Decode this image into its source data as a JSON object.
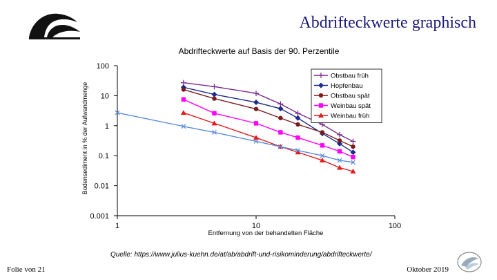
{
  "slide": {
    "title": "Abdrifteckwerte graphisch",
    "source": "Quelle: https://www.julius-kuehn.de/at/ab/abdrift-und-risikominderung/abdrifteckwerte/",
    "footer_left": "Folie von 21",
    "footer_right": "Oktober 2019"
  },
  "colors": {
    "title": "#1b1a7a",
    "logo": "#111111"
  },
  "chart_data": {
    "type": "line",
    "title": "Abdrifteckwerte auf Basis der 90. Perzentile",
    "xlabel": "Entfernung von der behandelten Fläche",
    "ylabel": "Bodensediment in % der Aufwandmenge",
    "x_scale": "log",
    "y_scale": "log",
    "xlim": [
      1,
      100
    ],
    "ylim": [
      0.001,
      100
    ],
    "x_ticks": [
      {
        "value": 1,
        "label": "1"
      },
      {
        "value": 10,
        "label": "10"
      },
      {
        "value": 100,
        "label": "100"
      }
    ],
    "y_ticks": [
      {
        "value": 100,
        "label": "100"
      },
      {
        "value": 10,
        "label": "10"
      },
      {
        "value": 1,
        "label": "1"
      },
      {
        "value": 0.1,
        "label": "0.1"
      },
      {
        "value": 0.01,
        "label": "0.01"
      },
      {
        "value": 0.001,
        "label": "0.001"
      }
    ],
    "grid": false,
    "legend_position": "top-right",
    "series": [
      {
        "name": "Obstbau  früh",
        "color": "#7b2c8c",
        "marker": "plus",
        "x": [
          3,
          5,
          10,
          15,
          20,
          30,
          40,
          50
        ],
        "y": [
          27,
          20,
          12,
          5.3,
          2.6,
          1.1,
          0.5,
          0.3
        ]
      },
      {
        "name": "Hopfenbau",
        "color": "#1b2a8c",
        "marker": "diamond",
        "x": [
          3,
          5,
          10,
          15,
          20,
          30,
          40,
          50
        ],
        "y": [
          19,
          11,
          6,
          3.7,
          1.8,
          0.55,
          0.25,
          0.13
        ]
      },
      {
        "name": "Obstbau spät",
        "color": "#7a1c1c",
        "marker": "circle",
        "x": [
          3,
          5,
          10,
          15,
          20,
          30,
          40,
          50
        ],
        "y": [
          16,
          8,
          3.6,
          1.8,
          1.1,
          0.6,
          0.32,
          0.2
        ]
      },
      {
        "name": "Weinbau spät",
        "color": "#ff00ff",
        "marker": "square",
        "x": [
          3,
          5,
          10,
          15,
          20,
          30,
          40,
          50
        ],
        "y": [
          7.5,
          2.6,
          1.2,
          0.6,
          0.4,
          0.22,
          0.14,
          0.09
        ]
      },
      {
        "name": "Weinbau  früh",
        "color": "#e41a1c",
        "marker": "triangle",
        "x": [
          3,
          5,
          10,
          15,
          20,
          30,
          40,
          50
        ],
        "y": [
          2.7,
          1.2,
          0.4,
          0.2,
          0.13,
          0.07,
          0.04,
          0.03
        ]
      },
      {
        "name": "",
        "color": "#5b8bd9",
        "marker": "x",
        "x": [
          1,
          3,
          5,
          10,
          15,
          20,
          30,
          40,
          50
        ],
        "y": [
          2.7,
          0.95,
          0.6,
          0.3,
          0.2,
          0.15,
          0.1,
          0.07,
          0.06
        ]
      }
    ]
  }
}
